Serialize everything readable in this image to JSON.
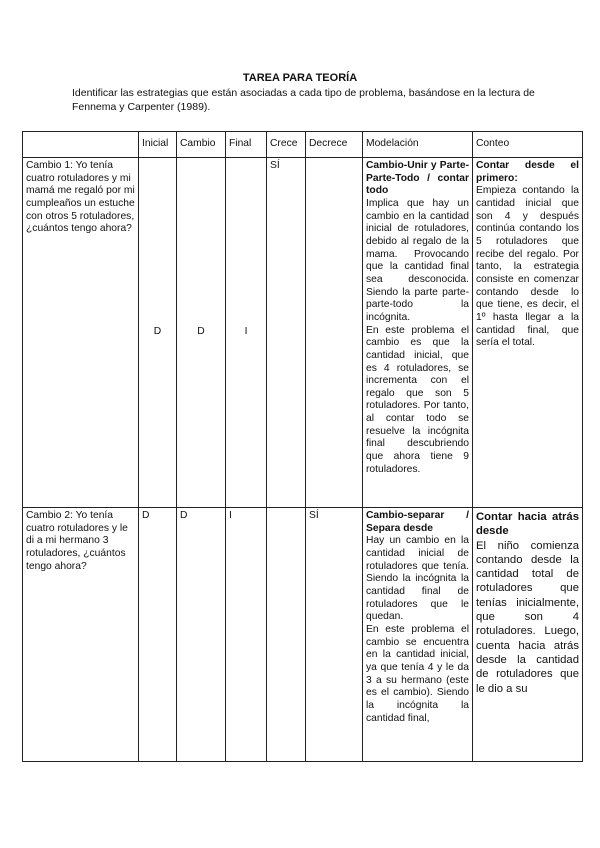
{
  "title": "TAREA PARA TEORÍA",
  "intro": "Identificar las estrategias que están asociadas a cada tipo de problema, basándose en la lectura de Fennema y Carpenter (1989).",
  "table": {
    "headers": [
      "",
      "Inicial",
      "Cambio",
      "Final",
      "Crece",
      "Decrece",
      "Modelación",
      "Conteo"
    ],
    "rows": [
      {
        "problem": "Cambio 1: Yo tenía cuatro rotuladores y mi mamá me regaló por mi cumpleaños un estuche con otros 5 rotuladores, ¿cuántos tengo ahora?",
        "inicial": "D",
        "cambio": "D",
        "final": "I",
        "crece": "SÍ",
        "decrece": "",
        "modelacion_title": "Cambio-Unir y Parte-Parte-Todo / contar todo",
        "modelacion_p1": "Implica que hay un cambio en la cantidad inicial de rotuladores, debido al regalo de la mama. Provocando que la cantidad final sea desconocida. Siendo la parte parte-parte-todo la incógnita.",
        "modelacion_p2": "En este problema el cambio es que la cantidad inicial, que es 4 rotuladores, se incrementa con el regalo que son 5 rotuladores. Por tanto, al contar todo se resuelve la incógnita final descubriendo que ahora tiene 9 rotuladores.",
        "conteo_title": "Contar desde el primero:",
        "conteo_text": "Empieza contando la cantidad inicial que son 4 y después continúa contando los 5 rotuladores que recibe del regalo. Por tanto, la estrategia consiste en comenzar contando desde lo que tiene, es decir, el 1º hasta llegar a la cantidad final, que sería el total."
      },
      {
        "problem": "Cambio 2: Yo tenía cuatro rotuladores y le di a mi hermano 3 rotuladores, ¿cuántos tengo ahora?",
        "inicial": "D",
        "cambio": "D",
        "final": "I",
        "crece": "",
        "decrece": "SÍ",
        "modelacion_title": "Cambio-separar / Separa desde",
        "modelacion_p1": "Hay un cambio en la cantidad inicial de rotuladores que tenía. Siendo la incógnita la cantidad final de rotuladores que le quedan.",
        "modelacion_p2": "En este problema el cambio se encuentra en la cantidad inicial, ya que tenía 4 y le da 3 a su hermano (este es el cambio). Siendo la incógnita la cantidad final,",
        "conteo_title": "Contar hacia atrás desde",
        "conteo_text": "El niño comienza contando desde la cantidad total de rotuladores que tenías inicialmente, que son 4 rotuladores. Luego, cuenta hacia atrás desde la cantidad de rotuladores que le dio a su"
      }
    ]
  }
}
